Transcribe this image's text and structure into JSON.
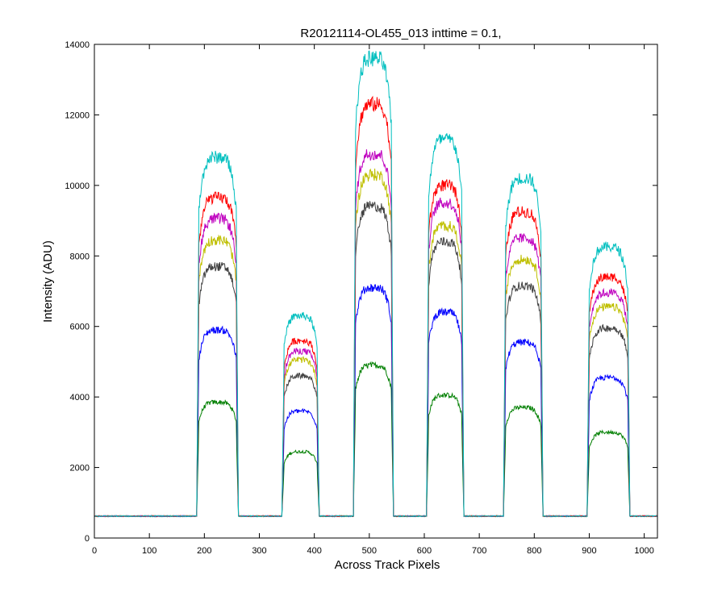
{
  "chart_data": {
    "type": "line",
    "title": "R20121114-OL455_013 inttime = 0.1,",
    "xlabel": "Across Track Pixels",
    "ylabel": "Intensity (ADU)",
    "xlim": [
      0,
      1024
    ],
    "ylim": [
      0,
      14000
    ],
    "xticks": [
      0,
      100,
      200,
      300,
      400,
      500,
      600,
      700,
      800,
      900,
      1000
    ],
    "yticks": [
      0,
      2000,
      4000,
      6000,
      8000,
      10000,
      12000,
      14000
    ],
    "grid": false,
    "legend": "none",
    "baseline_value": 620,
    "peaks": [
      {
        "x_start": 190,
        "x_end": 258
      },
      {
        "x_start": 345,
        "x_end": 405
      },
      {
        "x_start": 475,
        "x_end": 540
      },
      {
        "x_start": 608,
        "x_end": 668
      },
      {
        "x_start": 748,
        "x_end": 812
      },
      {
        "x_start": 900,
        "x_end": 970
      }
    ],
    "series": [
      {
        "color": "#007f00",
        "peak_levels": [
          3850,
          2450,
          4900,
          4050,
          3700,
          3000
        ]
      },
      {
        "color": "#0000ff",
        "peak_levels": [
          5900,
          3600,
          7100,
          6400,
          5550,
          4550
        ]
      },
      {
        "color": "#3f3f3f",
        "peak_levels": [
          7700,
          4600,
          9400,
          8400,
          7150,
          5950
        ]
      },
      {
        "color": "#bfbf00",
        "peak_levels": [
          8450,
          5050,
          10300,
          8850,
          7900,
          6550
        ]
      },
      {
        "color": "#bf00bf",
        "peak_levels": [
          9050,
          5300,
          10900,
          9500,
          8500,
          6950
        ]
      },
      {
        "color": "#ff0000",
        "peak_levels": [
          9650,
          5600,
          12300,
          10000,
          9250,
          7400
        ]
      },
      {
        "color": "#00bfbf",
        "peak_levels": [
          10800,
          6300,
          13600,
          11300,
          10200,
          8250
        ]
      }
    ]
  }
}
